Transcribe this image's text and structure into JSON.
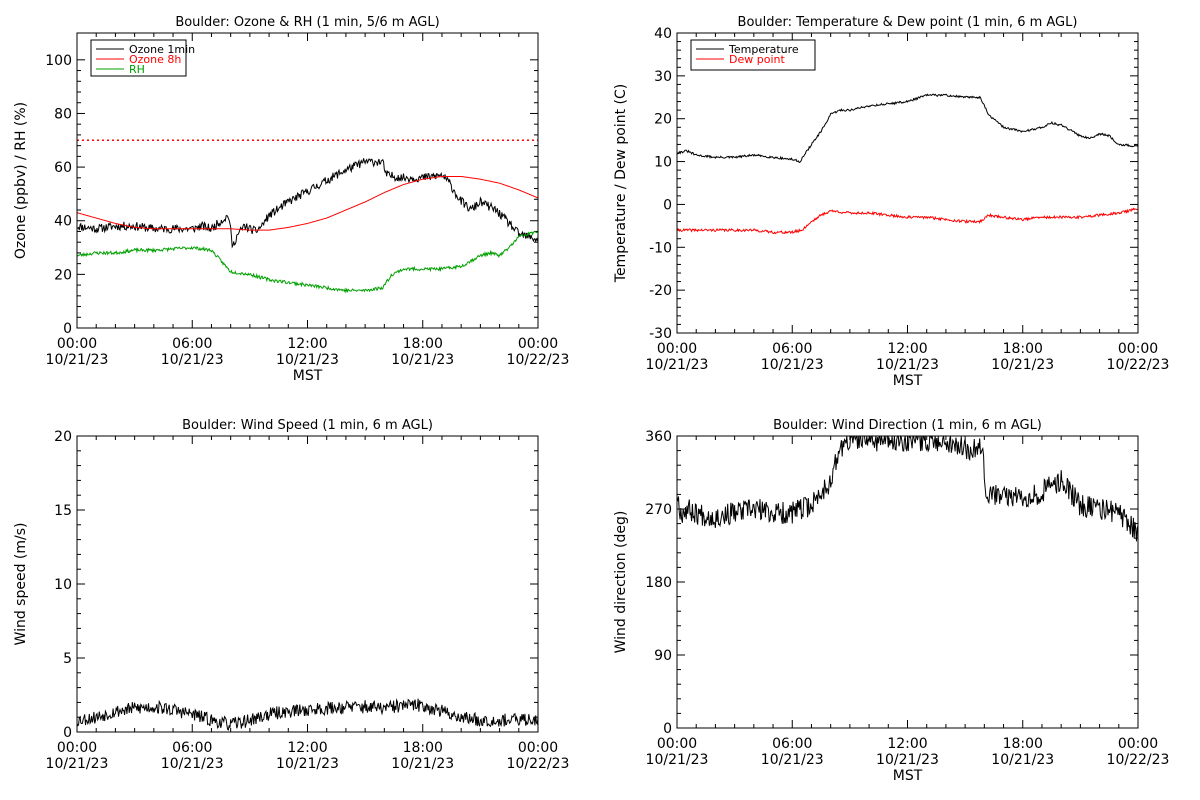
{
  "figure": {
    "x_axis_label": "MST"
  },
  "chart_data": [
    {
      "type": "line",
      "title": "Boulder: Ozone & RH (1 min, 5/6 m AGL)",
      "ylabel": "Ozone (ppbv) / RH (%)",
      "xlabel": "MST",
      "xlim": [
        0,
        24
      ],
      "ylim": [
        0,
        110
      ],
      "yticks": [
        0,
        20,
        40,
        60,
        80,
        100
      ],
      "x_tick_labels": [
        [
          "00:00",
          "10/21/23"
        ],
        [
          "06:00",
          "10/21/23"
        ],
        [
          "12:00",
          "10/21/23"
        ],
        [
          "18:00",
          "10/21/23"
        ],
        [
          "00:00",
          "10/22/23"
        ]
      ],
      "x_unit": "hours since 00:00 10/21/23",
      "legend": "top-left",
      "reference_lines": [
        {
          "y": 70,
          "color": "#ff0000",
          "style": "dotted"
        }
      ],
      "series": [
        {
          "name": "Ozone 1min",
          "color": "#000000",
          "noise": 1.6,
          "seed": 11,
          "x": [
            0,
            1,
            2,
            3,
            4,
            5,
            6,
            6.5,
            7,
            7.5,
            7.9,
            8.1,
            8.3,
            8.7,
            9.3,
            9.6,
            10,
            11,
            12,
            13,
            14,
            15,
            15.9,
            16.1,
            17,
            18,
            19,
            19.4,
            19.9,
            20.5,
            21,
            21.8,
            22.5,
            23,
            24
          ],
          "y": [
            38,
            37,
            38,
            38,
            37,
            37,
            37,
            38,
            37,
            40,
            42,
            30,
            34,
            38,
            36,
            38,
            42,
            47,
            51,
            55,
            59,
            62,
            62,
            57,
            56,
            56,
            57,
            54,
            48,
            44,
            47,
            44,
            39,
            35,
            33
          ]
        },
        {
          "name": "Ozone 8h",
          "color": "#ff0000",
          "noise": 0,
          "seed": 0,
          "x": [
            0,
            1,
            2,
            3,
            4,
            5,
            6,
            7,
            8,
            9,
            10,
            11,
            12,
            13,
            14,
            15,
            16,
            17,
            18,
            19,
            20,
            21,
            22,
            23,
            24
          ],
          "y": [
            43,
            41,
            39,
            37.5,
            37,
            37,
            37,
            37,
            37,
            36.5,
            36.5,
            37.5,
            39,
            41,
            44,
            47,
            50.5,
            53.5,
            55.5,
            56.5,
            56.5,
            55.5,
            54,
            51.5,
            48.5
          ]
        },
        {
          "name": "RH",
          "color": "#00a000",
          "noise": 0.6,
          "seed": 23,
          "x": [
            0,
            1,
            2,
            3,
            4,
            5,
            6,
            7,
            8,
            9,
            10,
            11,
            12,
            13,
            14,
            15,
            15.9,
            16.4,
            17,
            18,
            19,
            20,
            20.5,
            21,
            21.5,
            22,
            22.5,
            23,
            24
          ],
          "y": [
            27,
            28,
            28,
            29,
            29,
            29.5,
            30,
            29,
            21,
            20,
            18,
            17,
            16,
            15,
            14,
            14,
            15,
            20,
            22,
            22,
            22,
            23,
            25,
            27,
            28,
            27,
            30,
            34,
            36
          ]
        }
      ]
    },
    {
      "type": "line",
      "title": "Boulder: Temperature & Dew point (1 min, 6 m AGL)",
      "ylabel": "Temperature / Dew point (C)",
      "xlabel": "MST",
      "xlim": [
        0,
        24
      ],
      "ylim": [
        -30,
        40
      ],
      "yticks": [
        -30,
        -20,
        -10,
        0,
        10,
        20,
        30,
        40
      ],
      "x_tick_labels": [
        [
          "00:00",
          "10/21/23"
        ],
        [
          "06:00",
          "10/21/23"
        ],
        [
          "12:00",
          "10/21/23"
        ],
        [
          "18:00",
          "10/21/23"
        ],
        [
          "00:00",
          "10/22/23"
        ]
      ],
      "x_unit": "hours since 00:00 10/21/23",
      "legend": "top-left",
      "series": [
        {
          "name": "Temperature",
          "color": "#000000",
          "noise": 0.25,
          "seed": 31,
          "x": [
            0,
            0.5,
            1,
            2,
            3,
            4,
            5,
            6,
            6.4,
            7,
            7.5,
            8,
            8.5,
            9,
            10,
            11,
            12,
            13,
            14,
            15,
            15.8,
            16.2,
            17,
            18,
            19,
            19.5,
            20,
            21,
            21.5,
            22,
            22.5,
            23,
            24
          ],
          "y": [
            12,
            12.5,
            11.5,
            11,
            11,
            11.5,
            11,
            10.5,
            10,
            14,
            17,
            21,
            22,
            22,
            23,
            23.5,
            24,
            25.5,
            25.5,
            25,
            25,
            21,
            18,
            17,
            18,
            19,
            18.5,
            16,
            15.5,
            16.5,
            16,
            14,
            13.5
          ]
        },
        {
          "name": "Dew point",
          "color": "#ff0000",
          "noise": 0.3,
          "seed": 41,
          "x": [
            0,
            1,
            2,
            3,
            4,
            5,
            6,
            6.5,
            7,
            7.5,
            8,
            9,
            10,
            11,
            12,
            13,
            14,
            15,
            15.8,
            16.2,
            17,
            18,
            19,
            20,
            21,
            22,
            23,
            24
          ],
          "y": [
            -6,
            -6,
            -6,
            -6,
            -6,
            -6.5,
            -6.5,
            -6,
            -4,
            -2.5,
            -1.5,
            -2,
            -2,
            -2.5,
            -3,
            -3,
            -3.5,
            -4,
            -4,
            -2.5,
            -3,
            -3.5,
            -3,
            -3,
            -3,
            -2.5,
            -2,
            -1
          ]
        }
      ]
    },
    {
      "type": "line",
      "title": "Boulder: Wind Speed (1 min, 6 m AGL)",
      "ylabel": "Wind speed (m/s)",
      "xlabel": "",
      "xlim": [
        0,
        24
      ],
      "ylim": [
        0,
        20
      ],
      "yticks": [
        0,
        5,
        10,
        15,
        20
      ],
      "x_tick_labels": [
        [
          "00:00",
          "10/21/23"
        ],
        [
          "06:00",
          "10/21/23"
        ],
        [
          "12:00",
          "10/21/23"
        ],
        [
          "18:00",
          "10/21/23"
        ],
        [
          "00:00",
          "10/22/23"
        ]
      ],
      "x_unit": "hours since 00:00 10/21/23",
      "legend": "none",
      "series": [
        {
          "color": "#000000",
          "noise": 0.45,
          "seed": 53,
          "min": 0,
          "x": [
            0,
            1,
            2,
            3,
            4,
            5,
            6,
            7,
            8,
            9,
            10,
            11,
            12,
            13,
            14,
            15,
            16,
            17,
            18,
            19,
            20,
            21,
            22,
            23,
            24
          ],
          "y": [
            0.8,
            1.0,
            1.4,
            1.6,
            1.7,
            1.5,
            1.2,
            0.8,
            0.5,
            0.8,
            1.2,
            1.4,
            1.5,
            1.6,
            1.7,
            1.7,
            1.6,
            1.8,
            1.8,
            1.4,
            1.0,
            0.8,
            0.8,
            0.8,
            0.9
          ]
        }
      ]
    },
    {
      "type": "line",
      "title": "Boulder: Wind Direction (1 min, 6 m AGL)",
      "ylabel": "Wind direction (deg)",
      "xlabel": "MST",
      "xlim": [
        0,
        24
      ],
      "ylim": [
        0,
        360
      ],
      "yticks": [
        0,
        90,
        180,
        270,
        360
      ],
      "x_tick_labels": [
        [
          "00:00",
          "10/21/23"
        ],
        [
          "06:00",
          "10/21/23"
        ],
        [
          "12:00",
          "10/21/23"
        ],
        [
          "18:00",
          "10/21/23"
        ],
        [
          "00:00",
          "10/22/23"
        ]
      ],
      "x_unit": "hours since 00:00 10/21/23",
      "legend": "none",
      "series": [
        {
          "color": "#000000",
          "noise": 14,
          "seed": 67,
          "min": 0,
          "max": 360,
          "x": [
            0,
            0.2,
            0.5,
            1,
            2,
            3,
            4,
            5,
            6,
            7,
            7.5,
            8,
            8.5,
            9,
            10,
            11,
            12,
            13,
            14,
            15,
            15.5,
            15.9,
            16.1,
            17,
            18,
            19,
            19.5,
            20,
            20.5,
            21,
            22,
            23,
            24
          ],
          "y": [
            290,
            265,
            270,
            265,
            260,
            265,
            270,
            265,
            265,
            275,
            290,
            305,
            345,
            355,
            355,
            355,
            355,
            355,
            355,
            345,
            345,
            350,
            290,
            285,
            285,
            290,
            300,
            305,
            290,
            275,
            270,
            265,
            240
          ]
        }
      ]
    }
  ]
}
